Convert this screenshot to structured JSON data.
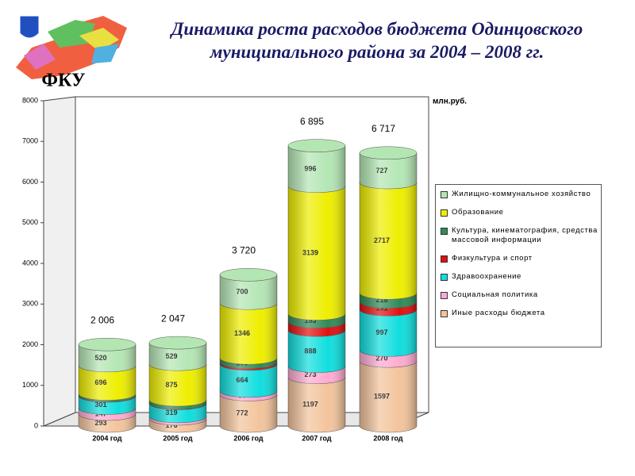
{
  "header": {
    "title": [
      "Динамика роста расходов  бюджета Одинцовского",
      "муниципального района за 2004 – 2008 гг."
    ],
    "logo_text": "ФКУ"
  },
  "chart_data": {
    "type": "stacked_cylinder",
    "unit_label": "млн.руб.",
    "categories": [
      "2004 год",
      "2005 год",
      "2006 год",
      "2007 год",
      "2008 год"
    ],
    "ylim": [
      0,
      8000
    ],
    "yticks": [
      0,
      1000,
      2000,
      3000,
      4000,
      5000,
      6000,
      7000,
      8000
    ],
    "grid": false,
    "series": [
      {
        "name": "Иные расходы бюджета",
        "color": "#f3c49c",
        "values": [
          293,
          176,
          772,
          1197,
          1597
        ]
      },
      {
        "name": "Социальная политика",
        "color": "#ffaad2",
        "values": [
          147,
          61,
          89,
          273,
          270
        ]
      },
      {
        "name": "Здравоохранение",
        "color": "#10dede",
        "values": [
          301,
          319,
          664,
          888,
          997
        ]
      },
      {
        "name": "Физкультура и спорт",
        "color": "#e01010",
        "values": [
          11,
          13,
          44,
          209,
          191
        ],
        "value_labels": [
          null,
          null,
          null,
          null,
          "191"
        ]
      },
      {
        "name": "Культура, кинематография, средства массовой информации",
        "color": "#2e8b57",
        "values": [
          38,
          74,
          105,
          193,
          218
        ]
      },
      {
        "name": "Образование",
        "color": "#eeee00",
        "values": [
          696,
          875,
          1346,
          3139,
          2717
        ]
      },
      {
        "name": "Жилищно-коммунальное хозяйство",
        "color": "#b4e6b4",
        "values": [
          520,
          529,
          700,
          996,
          727
        ]
      }
    ],
    "totals": {
      "values": [
        2006,
        2047,
        3720,
        6895,
        6717
      ],
      "value_labels": [
        "2 006",
        "2 047",
        "3 720",
        "6 895",
        "6 717"
      ]
    },
    "legend": "right"
  }
}
